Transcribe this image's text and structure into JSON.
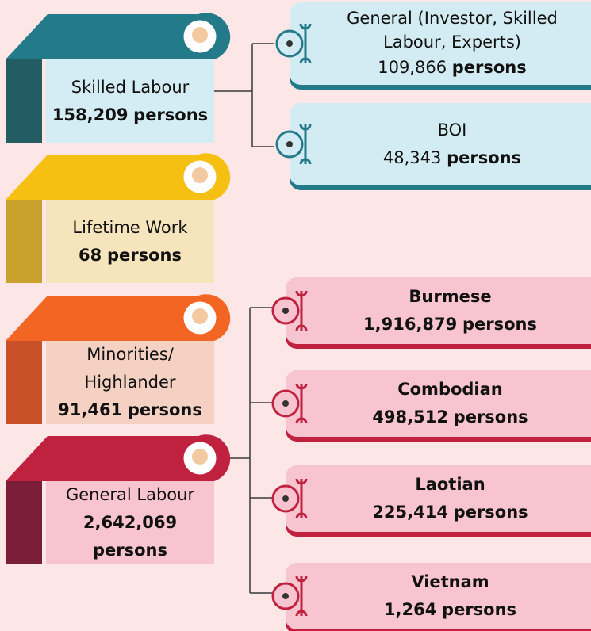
{
  "groups": [
    {
      "label": "Skilled Labour",
      "number": "158,209",
      "unit": "persons"
    },
    {
      "label": "Lifetime Work",
      "number": "68",
      "unit": "persons"
    },
    {
      "label": "Minorities/ Highlander",
      "number": "91,461",
      "unit": "persons"
    },
    {
      "label": "General Labour",
      "number": "2,642,069",
      "unit": "persons"
    }
  ],
  "skilled_sub": [
    {
      "label": "General (Investor, Skilled Labour, Experts)",
      "number": "109,866",
      "unit": "persons"
    },
    {
      "label": "BOI",
      "number": "48,343",
      "unit": "persons"
    }
  ],
  "general_sub": [
    {
      "label": "Burmese",
      "number": "1,916,879",
      "unit": "persons"
    },
    {
      "label": "Combodian",
      "number": "498,512",
      "unit": "persons"
    },
    {
      "label": "Laotian",
      "number": "225,414",
      "unit": "persons"
    },
    {
      "label": "Vietnam",
      "number": "1,264",
      "unit": "persons"
    }
  ]
}
